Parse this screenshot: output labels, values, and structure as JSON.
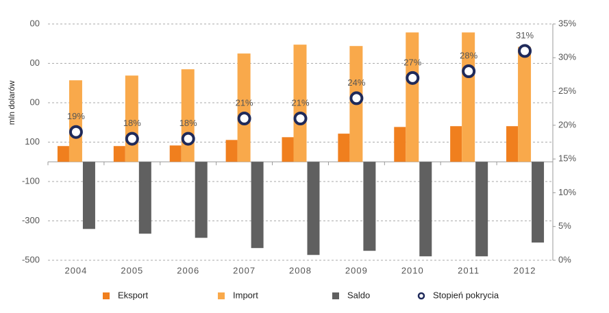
{
  "chart_data": {
    "type": "bar",
    "y_label": "mln dolarów",
    "categories": [
      "2004",
      "2005",
      "2006",
      "2007",
      "2008",
      "2009",
      "2010",
      "2011",
      "2012"
    ],
    "series": [
      {
        "name": "Eksport",
        "color": "#f07f1e",
        "values": [
          80,
          80,
          83,
          111,
          125,
          143,
          177,
          181,
          181
        ]
      },
      {
        "name": "Import",
        "color": "#f9a94b",
        "values": [
          414,
          438,
          470,
          550,
          595,
          588,
          657,
          657,
          584
        ]
      },
      {
        "name": "Saldo",
        "color": "#606060",
        "values": [
          -341,
          -365,
          -386,
          -438,
          -473,
          -452,
          -480,
          -480,
          -410
        ]
      },
      {
        "name": "Stopień pokrycia",
        "color": "#1f2a5a",
        "type": "scatter",
        "axis": "y2",
        "values": [
          19,
          18,
          18,
          21,
          21,
          24,
          27,
          28,
          31
        ],
        "value_labels": [
          "19%",
          "18%",
          "18%",
          "21%",
          "21%",
          "24%",
          "27%",
          "28%",
          "31%"
        ]
      }
    ],
    "ylim": [
      -500,
      700
    ],
    "yticks": [
      {
        "value": 700,
        "label": "00"
      },
      {
        "value": 500,
        "label": "00"
      },
      {
        "value": 300,
        "label": "00"
      },
      100,
      -100,
      -300,
      -500
    ],
    "y2lim": [
      0,
      35
    ],
    "y2ticks": [
      {
        "value": 35,
        "label": "35%"
      },
      {
        "value": 30,
        "label": "30%"
      },
      {
        "value": 25,
        "label": "25%"
      },
      {
        "value": 20,
        "label": "20%"
      },
      {
        "value": 15,
        "label": "15%"
      },
      {
        "value": 10,
        "label": "10%"
      },
      {
        "value": 5,
        "label": "5%"
      },
      {
        "value": 0,
        "label": "0%"
      }
    ],
    "grid": true,
    "legend": "bottom"
  }
}
